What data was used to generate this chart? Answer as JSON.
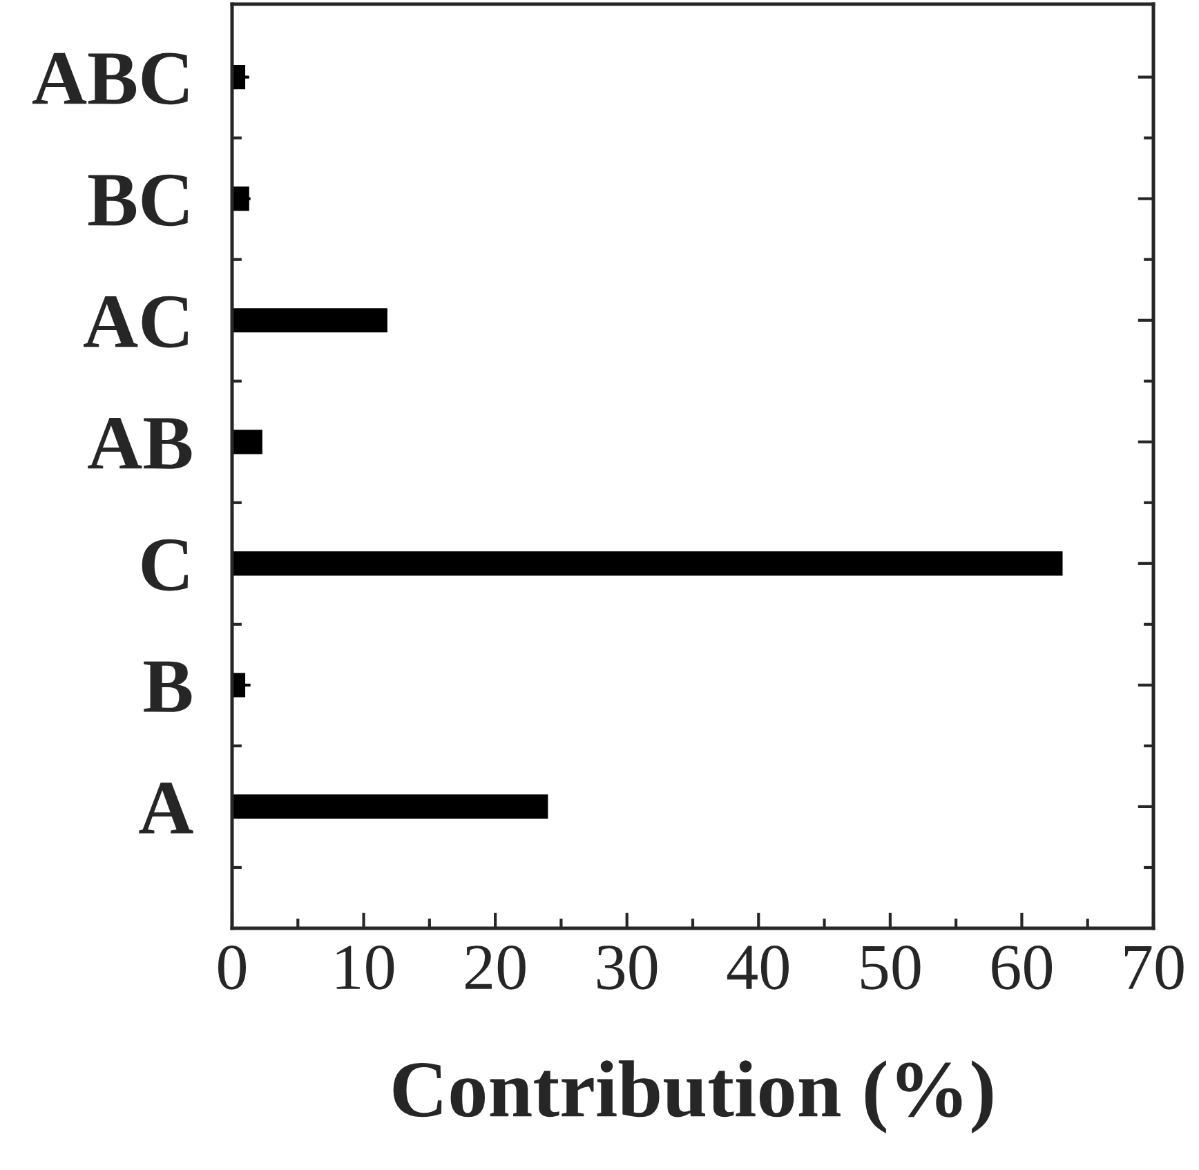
{
  "chart_data": {
    "type": "bar",
    "orientation": "horizontal",
    "xlabel": "Contribution (%)",
    "categories": [
      "ABC",
      "BC",
      "AC",
      "AB",
      "C",
      "B",
      "A"
    ],
    "values": [
      1.0,
      1.3,
      11.8,
      2.3,
      63.1,
      1.0,
      24.0
    ],
    "errors": [
      0.3,
      0.1,
      null,
      null,
      null,
      0.4,
      null
    ],
    "color": "#000000",
    "xlim": [
      0,
      70
    ],
    "xticks": [
      0,
      10,
      20,
      30,
      40,
      50,
      60,
      70
    ],
    "grid": false,
    "legend": false
  }
}
